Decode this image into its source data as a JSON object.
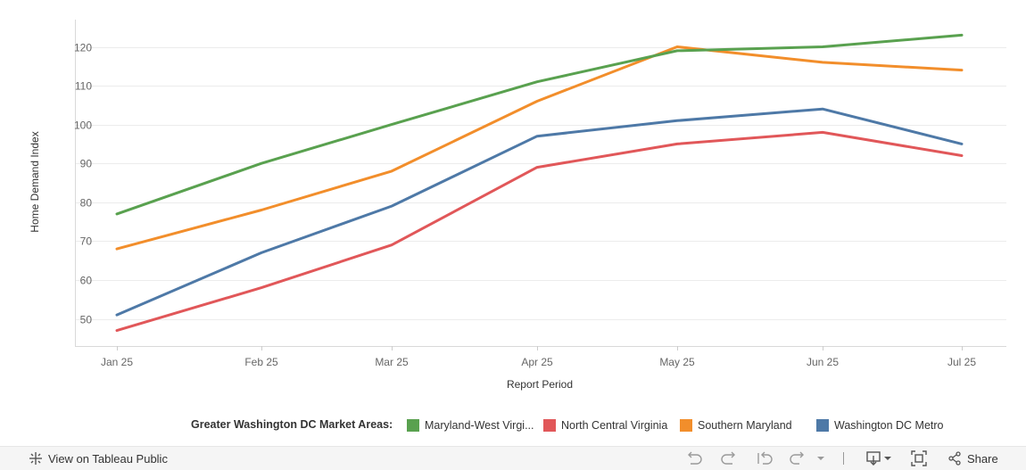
{
  "chart_data": {
    "type": "line",
    "title": "",
    "xlabel": "Report Period",
    "ylabel": "Home Demand Index",
    "categories": [
      "Jan 25",
      "Feb 25",
      "Mar 25",
      "Apr 25",
      "May 25",
      "Jun 25",
      "Jul 25"
    ],
    "yticks": [
      50,
      60,
      70,
      80,
      90,
      100,
      110,
      120
    ],
    "ylim": [
      43,
      127
    ],
    "grid": true,
    "legend_position": "bottom",
    "series": [
      {
        "name": "Maryland-West Virgi...",
        "color": "#59a14f",
        "values": [
          77,
          90,
          100,
          111,
          119,
          120,
          123
        ]
      },
      {
        "name": "North Central Virginia",
        "color": "#e15759",
        "values": [
          47,
          58,
          69,
          89,
          95,
          98,
          92
        ]
      },
      {
        "name": "Southern Maryland",
        "color": "#f28e2b",
        "values": [
          68,
          78,
          88,
          106,
          120,
          116,
          114
        ]
      },
      {
        "name": "Washington DC Metro",
        "color": "#4e79a7",
        "values": [
          51,
          67,
          79,
          97,
          101,
          104,
          95
        ]
      }
    ]
  },
  "legend": {
    "title": "Greater Washington DC Market Areas:"
  },
  "toolbar": {
    "view_label": "View on Tableau Public",
    "share_label": "Share"
  }
}
